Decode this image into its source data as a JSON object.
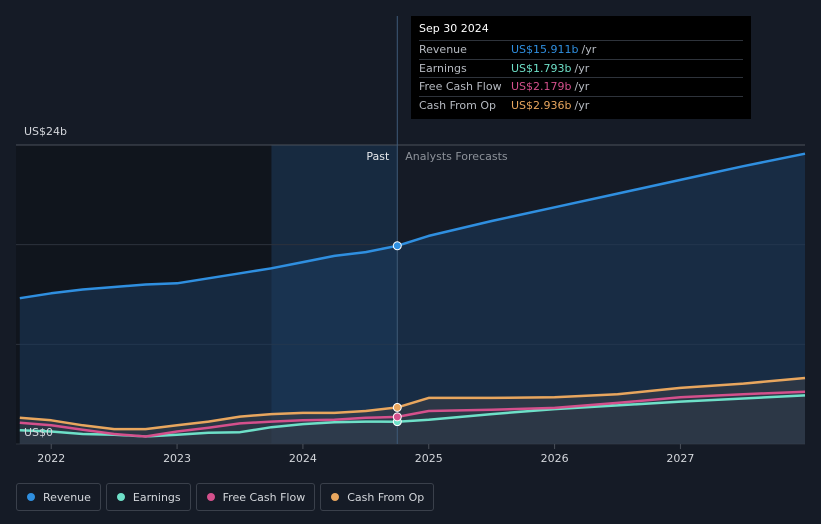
{
  "chart_data": {
    "type": "line",
    "title": "",
    "y_axis": {
      "top_label": "US$24b",
      "bottom_label": "US$0",
      "ylim": [
        0,
        24
      ]
    },
    "x_axis": {
      "ticks": [
        "2022",
        "2023",
        "2024",
        "2025",
        "2026",
        "2027"
      ],
      "xlim": [
        2021.72,
        2027.99
      ]
    },
    "past_label": "Past",
    "forecast_label": "Analysts Forecasts",
    "divider_x": 2024.75,
    "highlight_start": 2023.75,
    "series": [
      {
        "name": "Revenue",
        "color": "#2f8fe0",
        "points": [
          [
            2021.75,
            11.7
          ],
          [
            2022.0,
            12.1
          ],
          [
            2022.25,
            12.4
          ],
          [
            2022.5,
            12.6
          ],
          [
            2022.75,
            12.8
          ],
          [
            2023.0,
            12.9
          ],
          [
            2023.25,
            13.3
          ],
          [
            2023.5,
            13.7
          ],
          [
            2023.75,
            14.1
          ],
          [
            2024.0,
            14.6
          ],
          [
            2024.25,
            15.1
          ],
          [
            2024.5,
            15.4
          ],
          [
            2024.75,
            15.911
          ],
          [
            2025.0,
            16.7
          ],
          [
            2025.5,
            17.9
          ],
          [
            2026.0,
            19.0
          ],
          [
            2026.5,
            20.1
          ],
          [
            2027.0,
            21.2
          ],
          [
            2027.5,
            22.3
          ],
          [
            2027.99,
            23.3
          ]
        ]
      },
      {
        "name": "Earnings",
        "color": "#6ee0c8",
        "points": [
          [
            2021.75,
            1.1
          ],
          [
            2022.0,
            1.0
          ],
          [
            2022.25,
            0.8
          ],
          [
            2022.5,
            0.75
          ],
          [
            2022.75,
            0.6
          ],
          [
            2023.0,
            0.75
          ],
          [
            2023.25,
            0.9
          ],
          [
            2023.5,
            0.95
          ],
          [
            2023.75,
            1.35
          ],
          [
            2024.0,
            1.6
          ],
          [
            2024.25,
            1.75
          ],
          [
            2024.5,
            1.8
          ],
          [
            2024.75,
            1.793
          ],
          [
            2025.0,
            1.95
          ],
          [
            2025.5,
            2.4
          ],
          [
            2026.0,
            2.8
          ],
          [
            2026.5,
            3.1
          ],
          [
            2027.0,
            3.4
          ],
          [
            2027.5,
            3.65
          ],
          [
            2027.99,
            3.9
          ]
        ]
      },
      {
        "name": "Free Cash Flow",
        "color": "#d4508c",
        "points": [
          [
            2021.75,
            1.7
          ],
          [
            2022.0,
            1.5
          ],
          [
            2022.25,
            1.15
          ],
          [
            2022.5,
            0.8
          ],
          [
            2022.75,
            0.6
          ],
          [
            2023.0,
            1.0
          ],
          [
            2023.25,
            1.3
          ],
          [
            2023.5,
            1.65
          ],
          [
            2023.75,
            1.8
          ],
          [
            2024.0,
            1.9
          ],
          [
            2024.25,
            1.95
          ],
          [
            2024.5,
            2.1
          ],
          [
            2024.75,
            2.179
          ],
          [
            2025.0,
            2.65
          ],
          [
            2025.5,
            2.75
          ],
          [
            2026.0,
            2.9
          ],
          [
            2026.5,
            3.3
          ],
          [
            2027.0,
            3.75
          ],
          [
            2027.5,
            4.0
          ],
          [
            2027.99,
            4.2
          ]
        ]
      },
      {
        "name": "Cash From Op",
        "color": "#e8a65e",
        "points": [
          [
            2021.75,
            2.1
          ],
          [
            2022.0,
            1.9
          ],
          [
            2022.25,
            1.5
          ],
          [
            2022.5,
            1.2
          ],
          [
            2022.75,
            1.2
          ],
          [
            2023.0,
            1.5
          ],
          [
            2023.25,
            1.8
          ],
          [
            2023.5,
            2.2
          ],
          [
            2023.75,
            2.4
          ],
          [
            2024.0,
            2.5
          ],
          [
            2024.25,
            2.5
          ],
          [
            2024.5,
            2.65
          ],
          [
            2024.75,
            2.936
          ],
          [
            2025.0,
            3.7
          ],
          [
            2025.5,
            3.7
          ],
          [
            2026.0,
            3.75
          ],
          [
            2026.5,
            4.0
          ],
          [
            2027.0,
            4.5
          ],
          [
            2027.5,
            4.85
          ],
          [
            2027.99,
            5.3
          ]
        ]
      }
    ]
  },
  "tooltip": {
    "date": "Sep 30 2024",
    "rows": [
      {
        "label": "Revenue",
        "value": "US$15.911b",
        "unit": "/yr",
        "color": "#2f8fe0"
      },
      {
        "label": "Earnings",
        "value": "US$1.793b",
        "unit": "/yr",
        "color": "#6ee0c8"
      },
      {
        "label": "Free Cash Flow",
        "value": "US$2.179b",
        "unit": "/yr",
        "color": "#d4508c"
      },
      {
        "label": "Cash From Op",
        "value": "US$2.936b",
        "unit": "/yr",
        "color": "#e8a65e"
      }
    ]
  },
  "legend": [
    {
      "label": "Revenue",
      "color": "#2f8fe0"
    },
    {
      "label": "Earnings",
      "color": "#6ee0c8"
    },
    {
      "label": "Free Cash Flow",
      "color": "#d4508c"
    },
    {
      "label": "Cash From Op",
      "color": "#e8a65e"
    }
  ]
}
